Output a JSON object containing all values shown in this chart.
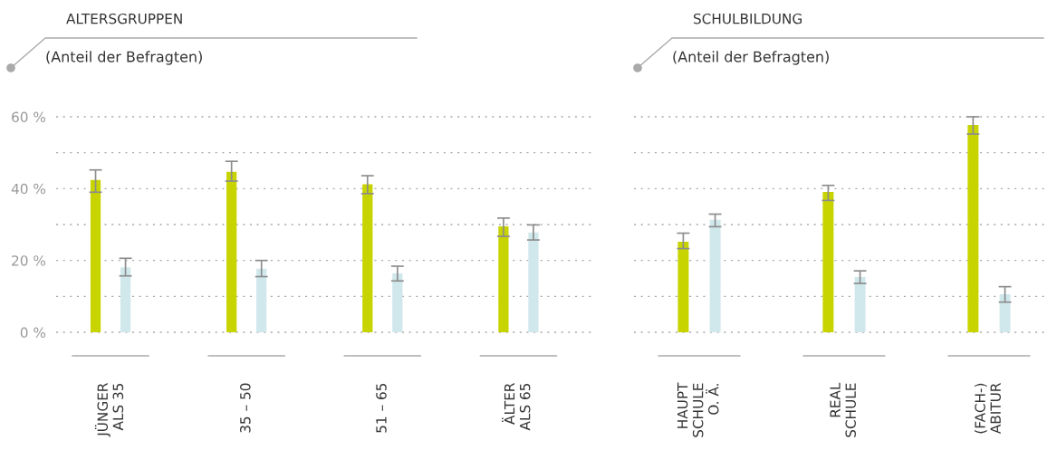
{
  "chart_data": [
    {
      "type": "bar",
      "title": "ALTERSGRUPPEN",
      "subtitle": "(Anteil der Befragten)",
      "categories": [
        "JÜNGER\nALS 35",
        "35 – 50",
        "51 – 65",
        "ÄLTER\nALS 65"
      ],
      "series": [
        {
          "color": "#c8d400",
          "values": [
            42.4,
            44.7,
            41.2,
            29.5
          ],
          "errors": [
            [
              39.0,
              45.2
            ],
            [
              42.1,
              47.6
            ],
            [
              38.6,
              43.6
            ],
            [
              26.7,
              31.8
            ]
          ]
        },
        {
          "color": "#d0e8ec",
          "values": [
            18.1,
            17.7,
            16.4,
            27.8
          ],
          "errors": [
            [
              15.7,
              20.6
            ],
            [
              15.5,
              20.0
            ],
            [
              14.3,
              18.4
            ],
            [
              25.7,
              29.9
            ]
          ]
        }
      ],
      "ylim": [
        0,
        60
      ],
      "yticks": [
        {
          "value": 0,
          "label": "0 %"
        },
        {
          "value": 10,
          "label": null
        },
        {
          "value": 20,
          "label": "20 %"
        },
        {
          "value": 30,
          "label": null
        },
        {
          "value": 40,
          "label": "40 %"
        },
        {
          "value": 50,
          "label": null
        },
        {
          "value": 60,
          "label": "60 %"
        }
      ],
      "grid": "y"
    },
    {
      "type": "bar",
      "title": "SCHULBILDUNG",
      "subtitle": "(Anteil der Befragten)",
      "categories": [
        "HAUPT\nSCHULE\nO. Ä.",
        "REAL\nSCHULE",
        "(FACH-)\nABITUR"
      ],
      "series": [
        {
          "color": "#c8d400",
          "values": [
            25.2,
            39.1,
            57.7
          ],
          "errors": [
            [
              23.3,
              27.6
            ],
            [
              36.7,
              40.9
            ],
            [
              55.2,
              60.0
            ]
          ]
        },
        {
          "color": "#d0e8ec",
          "values": [
            31.3,
            15.4,
            10.6
          ],
          "errors": [
            [
              29.4,
              32.9
            ],
            [
              13.6,
              17.1
            ],
            [
              8.4,
              12.7
            ]
          ]
        }
      ],
      "ylim": [
        0,
        60
      ],
      "yticks": [
        {
          "value": 0,
          "label": null
        },
        {
          "value": 10,
          "label": null
        },
        {
          "value": 20,
          "label": null
        },
        {
          "value": 30,
          "label": null
        },
        {
          "value": 40,
          "label": null
        },
        {
          "value": 50,
          "label": null
        },
        {
          "value": 60,
          "label": null
        }
      ],
      "grid": "y",
      "tick_labels": "x"
    }
  ]
}
